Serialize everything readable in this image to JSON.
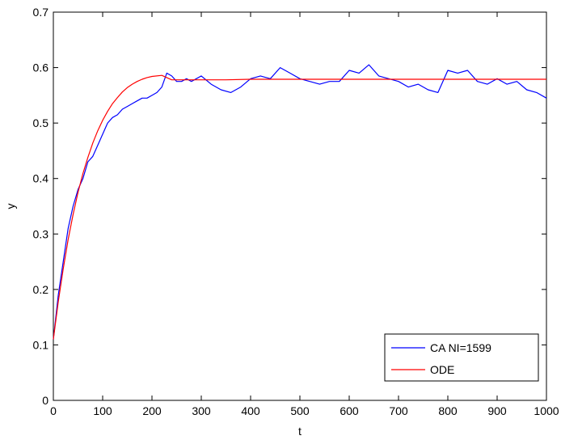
{
  "chart_data": {
    "type": "line",
    "xlabel": "t",
    "ylabel": "y",
    "xlim": [
      0,
      1000
    ],
    "ylim": [
      0,
      0.7
    ],
    "xticks": [
      0,
      100,
      200,
      300,
      400,
      500,
      600,
      700,
      800,
      900,
      1000
    ],
    "yticks": [
      0,
      0.1,
      0.2,
      0.3,
      0.4,
      0.5,
      0.6,
      0.7
    ],
    "xtick_labels": [
      "0",
      "100",
      "200",
      "300",
      "400",
      "500",
      "600",
      "700",
      "800",
      "900",
      "1000"
    ],
    "ytick_labels": [
      "0",
      "0.1",
      "0.2",
      "0.3",
      "0.4",
      "0.5",
      "0.6",
      "0.7"
    ],
    "grid": false,
    "legend_position": "bottom-right",
    "series": [
      {
        "name": "CA NI=1599",
        "color": "#0000ff",
        "x": [
          0,
          10,
          20,
          30,
          40,
          50,
          60,
          70,
          80,
          90,
          100,
          110,
          120,
          130,
          140,
          150,
          160,
          170,
          180,
          190,
          200,
          210,
          220,
          230,
          240,
          250,
          260,
          270,
          280,
          290,
          300,
          320,
          340,
          360,
          380,
          400,
          420,
          440,
          460,
          480,
          500,
          520,
          540,
          560,
          580,
          600,
          620,
          640,
          660,
          680,
          700,
          720,
          740,
          760,
          780,
          800,
          820,
          840,
          860,
          880,
          900,
          920,
          940,
          960,
          980,
          1000
        ],
        "y": [
          0.11,
          0.19,
          0.25,
          0.31,
          0.35,
          0.38,
          0.4,
          0.43,
          0.44,
          0.46,
          0.48,
          0.5,
          0.51,
          0.515,
          0.525,
          0.53,
          0.535,
          0.54,
          0.545,
          0.545,
          0.55,
          0.555,
          0.565,
          0.59,
          0.585,
          0.575,
          0.575,
          0.58,
          0.575,
          0.58,
          0.585,
          0.57,
          0.56,
          0.555,
          0.565,
          0.58,
          0.585,
          0.58,
          0.6,
          0.59,
          0.58,
          0.575,
          0.57,
          0.575,
          0.575,
          0.595,
          0.59,
          0.605,
          0.585,
          0.58,
          0.575,
          0.565,
          0.57,
          0.56,
          0.555,
          0.595,
          0.59,
          0.595,
          0.575,
          0.57,
          0.58,
          0.57,
          0.575,
          0.56,
          0.555,
          0.545
        ]
      },
      {
        "name": "ODE",
        "color": "#ff0000",
        "x": [
          0,
          10,
          20,
          30,
          40,
          50,
          60,
          70,
          80,
          90,
          100,
          110,
          120,
          130,
          140,
          150,
          160,
          170,
          180,
          190,
          200,
          220,
          240,
          260,
          280,
          300,
          350,
          400,
          450,
          500,
          600,
          700,
          800,
          900,
          1000
        ],
        "y": [
          0.11,
          0.178,
          0.237,
          0.29,
          0.335,
          0.375,
          0.409,
          0.438,
          0.464,
          0.486,
          0.505,
          0.521,
          0.535,
          0.546,
          0.556,
          0.564,
          0.57,
          0.575,
          0.579,
          0.582,
          0.584,
          0.586,
          0.578,
          0.578,
          0.578,
          0.578,
          0.578,
          0.579,
          0.579,
          0.579,
          0.579,
          0.579,
          0.579,
          0.579,
          0.579
        ]
      }
    ]
  }
}
